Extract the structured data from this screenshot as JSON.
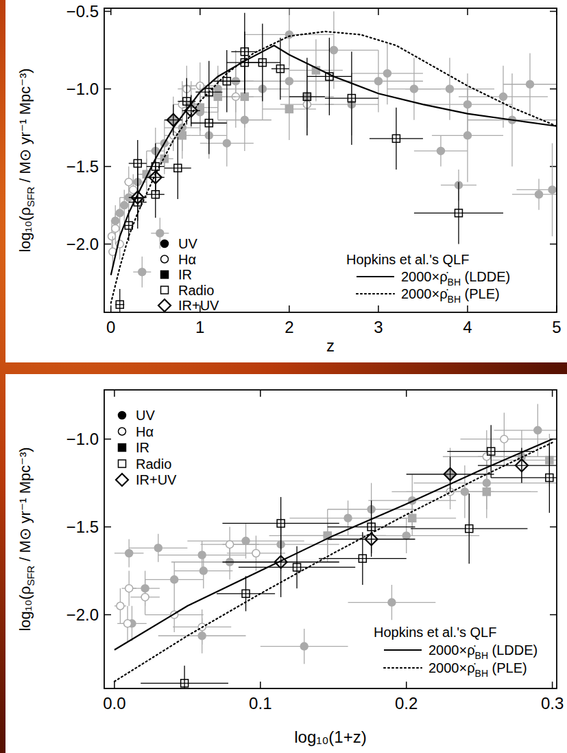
{
  "chart_data": [
    {
      "type": "scatter",
      "x_label": "z",
      "y_label": "log₁₀(ρSFR / M⊙ yr⁻¹ Mpc⁻³)",
      "legend_title": "Hopkins et al.'s QLF",
      "legend": "bottom",
      "grid": false,
      "xlim": [
        -0.075,
        5.0
      ],
      "ylim": [
        -2.44,
        -0.48
      ],
      "xticks": [
        0,
        1,
        2,
        3,
        4,
        5
      ],
      "yticks": [
        {
          "value": -2.0,
          "label": "−2.0"
        },
        {
          "value": -1.5,
          "label": "−1.5"
        },
        {
          "value": -1.0,
          "label": "−1.0"
        },
        {
          "value": -0.5,
          "label": "−0.5"
        }
      ],
      "series": [
        {
          "name": "UV",
          "type": "scatter",
          "marker": "circle",
          "color": "#aaaaaa",
          "x": [
            0.05,
            0.1,
            0.15,
            0.2,
            0.3,
            0.4,
            0.5,
            0.6,
            0.7,
            0.8,
            0.9,
            1.0,
            1.1,
            1.2,
            1.4,
            1.5,
            1.7,
            2.0,
            2.2,
            2.5,
            2.7,
            3.0,
            3.1,
            3.4,
            3.7,
            3.8,
            4.0,
            4.0,
            4.4,
            4.5,
            4.7,
            4.8,
            4.95,
            3.9,
            0.35,
            0.55,
            2.0,
            1.3
          ],
          "values": [
            -1.85,
            -1.8,
            -1.75,
            -1.7,
            -1.6,
            -1.55,
            -1.4,
            -1.35,
            -1.2,
            -1.25,
            -1.1,
            -1.15,
            -1.3,
            -1.0,
            -0.95,
            -1.2,
            -1.0,
            -0.95,
            -1.05,
            -0.75,
            -1.1,
            -0.95,
            -0.9,
            -1.0,
            -1.4,
            -1.0,
            -1.1,
            -1.3,
            -1.05,
            -1.2,
            -0.97,
            -1.68,
            -1.65,
            -1.62,
            -2.18,
            -1.93,
            -0.65,
            -1.35
          ],
          "xerr": [
            0.05,
            0.05,
            0.05,
            0.1,
            0.1,
            0.1,
            0.1,
            0.1,
            0.1,
            0.2,
            0.1,
            0.2,
            0.2,
            0.2,
            0.2,
            0.3,
            0.3,
            0.5,
            0.3,
            0.5,
            0.3,
            0.5,
            0.4,
            0.3,
            0.3,
            0.5,
            0.5,
            0.4,
            0.5,
            0.5,
            0.3,
            0.3,
            0.4,
            0.2,
            0.1,
            0.1,
            0.5,
            0.3
          ],
          "yerr": [
            0.1,
            0.1,
            0.1,
            0.1,
            0.15,
            0.15,
            0.15,
            0.15,
            0.15,
            0.15,
            0.15,
            0.15,
            0.15,
            0.15,
            0.2,
            0.2,
            0.2,
            0.2,
            0.2,
            0.25,
            0.2,
            0.2,
            0.2,
            0.2,
            0.1,
            0.2,
            0.2,
            0.3,
            0.2,
            0.3,
            0.2,
            0.1,
            0.3,
            0.1,
            0.1,
            0.1,
            0.2,
            0.15
          ]
        },
        {
          "name": "Hα",
          "type": "scatter",
          "marker": "open-circle",
          "color": "#aaaaaa",
          "x": [
            0.01,
            0.02,
            0.05,
            0.1,
            0.2,
            0.25,
            0.7,
            0.8,
            0.85,
            1.0,
            1.4,
            2.2
          ],
          "values": [
            -1.95,
            -2.05,
            -1.9,
            -2.0,
            -1.6,
            -1.65,
            -1.3,
            -1.1,
            -1.0,
            -0.98,
            -1.05,
            -1.1
          ],
          "xerr": [
            0.01,
            0.01,
            0.03,
            0.05,
            0.05,
            0.05,
            0.1,
            0.1,
            0.1,
            0.2,
            0.2,
            0.3
          ],
          "yerr": [
            0.1,
            0.1,
            0.1,
            0.1,
            0.1,
            0.1,
            0.1,
            0.15,
            0.15,
            0.15,
            0.2,
            0.2
          ]
        },
        {
          "name": "IR",
          "type": "scatter",
          "marker": "square",
          "color": "#aaaaaa",
          "x": [
            0.4,
            0.6,
            0.8,
            1.0,
            1.2,
            1.5,
            2.0,
            2.3
          ],
          "values": [
            -1.55,
            -1.45,
            -1.3,
            -1.12,
            -1.05,
            -1.05,
            -1.13,
            -0.88
          ],
          "xerr": [
            0.1,
            0.1,
            0.1,
            0.2,
            0.2,
            0.2,
            0.3,
            0.3
          ],
          "yerr": [
            0.1,
            0.1,
            0.15,
            0.15,
            0.15,
            0.2,
            0.2,
            0.2
          ]
        },
        {
          "name": "Radio",
          "type": "scatter",
          "marker": "open-square",
          "color": "#000000",
          "x": [
            0.1,
            0.2,
            0.3,
            0.3,
            0.5,
            0.5,
            0.75,
            0.85,
            1.1,
            1.1,
            1.3,
            1.5,
            1.5,
            1.7,
            1.9,
            2.2,
            2.45,
            2.7,
            3.2,
            3.9
          ],
          "values": [
            -2.39,
            -1.88,
            -1.48,
            -1.73,
            -1.68,
            -1.5,
            -1.51,
            -1.08,
            -1.22,
            -1.02,
            -0.95,
            -0.76,
            -0.83,
            -0.83,
            -0.87,
            -1.05,
            -0.92,
            -1.06,
            -1.32,
            -1.8
          ],
          "xerr": [
            0.05,
            0.05,
            0.1,
            0.1,
            0.1,
            0.1,
            0.15,
            0.1,
            0.2,
            0.15,
            0.15,
            0.15,
            0.2,
            0.2,
            0.1,
            0.2,
            0.25,
            0.3,
            0.3,
            0.5
          ],
          "yerr": [
            0.1,
            0.1,
            0.15,
            0.12,
            0.15,
            0.15,
            0.2,
            0.15,
            0.2,
            0.2,
            0.2,
            0.25,
            0.2,
            0.25,
            0.2,
            0.25,
            0.25,
            0.3,
            0.2,
            0.2
          ]
        },
        {
          "name": "IR+UV",
          "type": "scatter",
          "marker": "open-diamond",
          "color": "#000000",
          "x": [
            0.3,
            0.5,
            0.7,
            0.9
          ],
          "values": [
            -1.7,
            -1.57,
            -1.2,
            -1.14
          ],
          "xerr": [
            0.1,
            0.1,
            0.1,
            0.1
          ],
          "yerr": [
            0.2,
            0.1,
            0.1,
            0.1
          ]
        },
        {
          "name": "2000×ρ̇BH (LDDE)",
          "type": "line",
          "line_style": "solid",
          "color": "#000000",
          "x": [
            0,
            0.1,
            0.2,
            0.3,
            0.5,
            0.7,
            1.0,
            1.2,
            1.5,
            1.83,
            2.0,
            2.5,
            3.0,
            3.5,
            4.0,
            4.5,
            5.0
          ],
          "values": [
            -2.2,
            -1.95,
            -1.8,
            -1.68,
            -1.45,
            -1.25,
            -1.02,
            -0.92,
            -0.82,
            -0.72,
            -0.78,
            -0.92,
            -1.03,
            -1.1,
            -1.16,
            -1.2,
            -1.24
          ]
        },
        {
          "name": "2000×ρ̇BH (PLE)",
          "type": "line",
          "line_style": "dotted",
          "color": "#000000",
          "x": [
            0,
            0.1,
            0.2,
            0.3,
            0.5,
            0.7,
            1.0,
            1.3,
            1.6,
            2.0,
            2.4,
            2.8,
            3.2,
            3.6,
            4.0,
            4.5,
            5.0
          ],
          "values": [
            -2.38,
            -2.15,
            -1.95,
            -1.8,
            -1.55,
            -1.33,
            -1.08,
            -0.9,
            -0.77,
            -0.66,
            -0.63,
            -0.65,
            -0.72,
            -0.85,
            -0.98,
            -1.12,
            -1.24
          ]
        }
      ]
    },
    {
      "type": "scatter",
      "x_label": "log₁₀(1+z)",
      "y_label": "log₁₀(ρSFR / M⊙ yr⁻¹ Mpc⁻³)",
      "legend_title": "Hopkins et al.'s QLF",
      "legend": "bottom",
      "grid": false,
      "xlim": [
        -0.007,
        0.303
      ],
      "ylim": [
        -2.42,
        -0.72
      ],
      "xticks": [
        {
          "value": 0.0,
          "label": "0.0"
        },
        0.1,
        0.2,
        0.3
      ],
      "yticks": [
        {
          "value": -2.0,
          "label": "−2.0"
        },
        {
          "value": -1.5,
          "label": "−1.5"
        },
        {
          "value": -1.0,
          "label": "−1.0"
        }
      ],
      "series": [
        {
          "name": "UV",
          "type": "scatter",
          "marker": "circle",
          "color": "#aaaaaa",
          "x": [
            0.021,
            0.041,
            0.061,
            0.079,
            0.114,
            0.146,
            0.176,
            0.204,
            0.23,
            0.255,
            0.279,
            0.13,
            0.19,
            0.01,
            0.03,
            0.06,
            0.09,
            0.16,
            0.2,
            0.24,
            0.29,
            0.06,
            0.012
          ],
          "values": [
            -1.85,
            -1.8,
            -1.75,
            -1.7,
            -1.6,
            -1.55,
            -1.4,
            -1.35,
            -1.2,
            -1.25,
            -1.1,
            -2.18,
            -1.93,
            -1.65,
            -1.62,
            -1.66,
            -1.58,
            -1.45,
            -1.55,
            -1.3,
            -0.95,
            -2.12,
            -2.05
          ],
          "xerr": [
            0.01,
            0.02,
            0.02,
            0.04,
            0.04,
            0.04,
            0.03,
            0.03,
            0.03,
            0.05,
            0.03,
            0.03,
            0.03,
            0.01,
            0.02,
            0.03,
            0.04,
            0.04,
            0.05,
            0.05,
            0.03,
            0.03,
            0.01
          ],
          "yerr": [
            0.1,
            0.1,
            0.1,
            0.1,
            0.15,
            0.15,
            0.15,
            0.15,
            0.15,
            0.15,
            0.15,
            0.1,
            0.1,
            0.08,
            0.08,
            0.08,
            0.1,
            0.1,
            0.1,
            0.15,
            0.15,
            0.1,
            0.1
          ]
        },
        {
          "name": "Hα",
          "type": "scatter",
          "marker": "open-circle",
          "color": "#aaaaaa",
          "x": [
            0.004,
            0.009,
            0.021,
            0.041,
            0.079,
            0.097,
            0.23,
            0.255,
            0.267,
            0.01,
            0.06
          ],
          "values": [
            -1.95,
            -2.05,
            -1.9,
            -2.0,
            -1.6,
            -1.65,
            -1.3,
            -1.1,
            -1.0,
            -1.85,
            -2.07
          ],
          "xerr": [
            0.004,
            0.004,
            0.01,
            0.02,
            0.02,
            0.02,
            0.03,
            0.03,
            0.03,
            0.005,
            0.02
          ],
          "yerr": [
            0.1,
            0.1,
            0.1,
            0.1,
            0.1,
            0.1,
            0.1,
            0.15,
            0.15,
            0.1,
            0.1
          ]
        },
        {
          "name": "IR",
          "type": "scatter",
          "marker": "square",
          "color": "#aaaaaa",
          "x": [
            0.146,
            0.204,
            0.255,
            0.298
          ],
          "values": [
            -1.55,
            -1.45,
            -1.3,
            -1.12
          ],
          "xerr": [
            0.03,
            0.03,
            0.03,
            0.04
          ],
          "yerr": [
            0.1,
            0.1,
            0.15,
            0.15
          ]
        },
        {
          "name": "Radio",
          "type": "scatter",
          "marker": "open-square",
          "color": "#000000",
          "x": [
            0.048,
            0.09,
            0.114,
            0.125,
            0.17,
            0.176,
            0.243,
            0.258,
            0.298
          ],
          "values": [
            -2.39,
            -1.88,
            -1.48,
            -1.73,
            -1.68,
            -1.5,
            -1.51,
            -1.07,
            -1.22
          ],
          "xerr": [
            0.03,
            0.02,
            0.04,
            0.04,
            0.03,
            0.03,
            0.04,
            0.03,
            0.04
          ],
          "yerr": [
            0.1,
            0.1,
            0.15,
            0.12,
            0.15,
            0.15,
            0.2,
            0.15,
            0.2
          ]
        },
        {
          "name": "IR+UV",
          "type": "scatter",
          "marker": "open-diamond",
          "color": "#000000",
          "x": [
            0.114,
            0.176,
            0.23,
            0.279
          ],
          "values": [
            -1.7,
            -1.57,
            -1.2,
            -1.15
          ],
          "xerr": [
            0.04,
            0.03,
            0.03,
            0.03
          ],
          "yerr": [
            0.2,
            0.1,
            0.1,
            0.1
          ]
        },
        {
          "name": "2000×ρ̇BH (LDDE)",
          "type": "line",
          "line_style": "solid",
          "color": "#000000",
          "x": [
            0,
            0.05,
            0.1,
            0.15,
            0.2,
            0.25,
            0.3
          ],
          "values": [
            -2.2,
            -1.95,
            -1.75,
            -1.55,
            -1.37,
            -1.18,
            -1.0
          ]
        },
        {
          "name": "2000×ρ̇BH (PLE)",
          "type": "line",
          "line_style": "dotted",
          "color": "#000000",
          "x": [
            0,
            0.05,
            0.1,
            0.15,
            0.2,
            0.25,
            0.3
          ],
          "values": [
            -2.38,
            -2.12,
            -1.88,
            -1.65,
            -1.43,
            -1.22,
            -1.02
          ]
        }
      ]
    }
  ]
}
